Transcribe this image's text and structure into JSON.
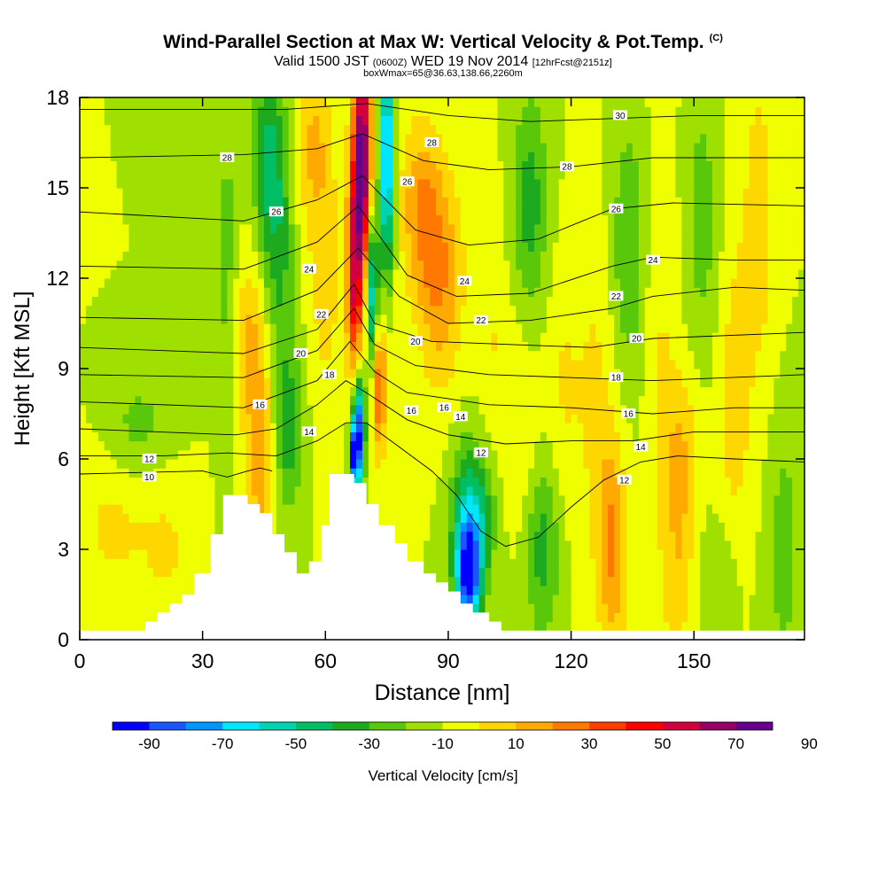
{
  "figure": {
    "title_main": "Wind-Parallel Section at Max W: Vertical Velocity & Pot.Temp.",
    "title_mark": "(C)",
    "subtitle_pre": "Valid 1500 JST",
    "subtitle_z": "(0600Z)",
    "subtitle_post": "WED 19 Nov 2014",
    "subtitle_fcst": "[12hrFcst@2151z]",
    "subtitle2": "boxWmax=65@36.63,138.66,2260m"
  },
  "chart_data": {
    "type": "heatmap",
    "title": "Wind-Parallel Section at Max W: Vertical Velocity & Pot.Temp.",
    "xlabel": "Distance [nm]",
    "ylabel": "Height [Kft MSL]",
    "xlim": [
      0,
      177
    ],
    "ylim": [
      0,
      18
    ],
    "xticks": [
      0,
      30,
      60,
      90,
      120,
      150
    ],
    "yticks": [
      0,
      3,
      6,
      9,
      12,
      15,
      18
    ],
    "colorbar": {
      "label": "Vertical Velocity [cm/s]",
      "tick_labels": [
        -90,
        -70,
        -50,
        -30,
        -10,
        10,
        30,
        50,
        70,
        90
      ],
      "colors": [
        "#0000ff",
        "#1a55ff",
        "#0096ff",
        "#00e6ff",
        "#00d2b4",
        "#00be64",
        "#1eaa1e",
        "#5ac80a",
        "#a0e000",
        "#f0ff00",
        "#ffd700",
        "#ffaa00",
        "#ff7800",
        "#ff3c00",
        "#ff0000",
        "#d2003c",
        "#960064",
        "#64008c"
      ]
    },
    "terrain": [
      [
        0,
        0.3
      ],
      [
        16,
        0.3
      ],
      [
        16,
        0.6
      ],
      [
        19,
        0.6
      ],
      [
        19,
        0.9
      ],
      [
        22,
        0.9
      ],
      [
        22,
        1.2
      ],
      [
        25,
        1.2
      ],
      [
        25,
        1.5
      ],
      [
        28,
        1.5
      ],
      [
        28,
        2.2
      ],
      [
        32,
        2.2
      ],
      [
        32,
        3.5
      ],
      [
        35,
        3.5
      ],
      [
        35,
        4.8
      ],
      [
        41,
        4.8
      ],
      [
        41,
        4.5
      ],
      [
        44,
        4.5
      ],
      [
        44,
        4.2
      ],
      [
        47,
        4.2
      ],
      [
        47,
        3.5
      ],
      [
        50,
        3.5
      ],
      [
        50,
        2.9
      ],
      [
        53,
        2.9
      ],
      [
        53,
        2.2
      ],
      [
        56,
        2.2
      ],
      [
        56,
        2.6
      ],
      [
        59,
        2.6
      ],
      [
        59,
        3.8
      ],
      [
        61,
        3.8
      ],
      [
        61,
        5.5
      ],
      [
        67,
        5.5
      ],
      [
        67,
        5.2
      ],
      [
        70,
        5.2
      ],
      [
        70,
        4.5
      ],
      [
        73,
        4.5
      ],
      [
        73,
        3.8
      ],
      [
        77,
        3.8
      ],
      [
        77,
        3.2
      ],
      [
        80,
        3.2
      ],
      [
        80,
        2.6
      ],
      [
        84,
        2.6
      ],
      [
        84,
        2.2
      ],
      [
        87,
        2.2
      ],
      [
        87,
        1.9
      ],
      [
        90,
        1.9
      ],
      [
        90,
        1.6
      ],
      [
        93,
        1.6
      ],
      [
        93,
        1.2
      ],
      [
        96,
        1.2
      ],
      [
        96,
        0.9
      ],
      [
        100,
        0.9
      ],
      [
        100,
        0.6
      ],
      [
        103,
        0.6
      ],
      [
        103,
        0.3
      ],
      [
        177,
        0.3
      ]
    ],
    "w_field": [
      {
        "x": 69,
        "y": 16,
        "sx": 1.6,
        "sy": 2.8,
        "w": 85
      },
      {
        "x": 67,
        "y": 12,
        "sx": 1.3,
        "sy": 2.6,
        "w": 55
      },
      {
        "x": 73,
        "y": 8.5,
        "sx": 1.4,
        "sy": 1.6,
        "w": 45
      },
      {
        "x": 88,
        "y": 12,
        "sx": 4,
        "sy": 2.5,
        "w": 30
      },
      {
        "x": 83,
        "y": 14.5,
        "sx": 3.5,
        "sy": 2,
        "w": 25
      },
      {
        "x": 75,
        "y": 16,
        "sx": 1.2,
        "sy": 2.6,
        "w": -70
      },
      {
        "x": 71.5,
        "y": 11.5,
        "sx": 1,
        "sy": 2,
        "w": -55
      },
      {
        "x": 68,
        "y": 7,
        "sx": 1.1,
        "sy": 1.3,
        "w": -80
      },
      {
        "x": 67,
        "y": 6,
        "sx": 0.8,
        "sy": 0.8,
        "w": -60
      },
      {
        "x": 95,
        "y": 2,
        "sx": 2,
        "sy": 1.2,
        "w": -65
      },
      {
        "x": 94,
        "y": 3.5,
        "sx": 2.5,
        "sy": 2,
        "w": -40
      },
      {
        "x": 98,
        "y": 4,
        "sx": 2.5,
        "sy": 1.5,
        "w": -30
      },
      {
        "x": 44,
        "y": 6,
        "sx": 2.5,
        "sy": 2.6,
        "w": 25
      },
      {
        "x": 41,
        "y": 10,
        "sx": 3,
        "sy": 2,
        "w": 20
      },
      {
        "x": 60,
        "y": 12,
        "sx": 3,
        "sy": 3,
        "w": 15
      },
      {
        "x": 57,
        "y": 16.5,
        "sx": 3,
        "sy": 2,
        "w": 20
      },
      {
        "x": 46,
        "y": 16,
        "sx": 2.5,
        "sy": 2.5,
        "w": -30
      },
      {
        "x": 49,
        "y": 13,
        "sx": 2.5,
        "sy": 3,
        "w": -20
      },
      {
        "x": 51,
        "y": 7,
        "sx": 2.5,
        "sy": 2,
        "w": -25
      },
      {
        "x": 36,
        "y": 12,
        "sx": 2,
        "sy": 4,
        "w": -15
      },
      {
        "x": 26,
        "y": 15,
        "sx": 3,
        "sy": 3,
        "w": -8
      },
      {
        "x": 8,
        "y": 4,
        "sx": 7,
        "sy": 2,
        "w": 12
      },
      {
        "x": 22,
        "y": 3,
        "sx": 5,
        "sy": 2,
        "w": 10
      },
      {
        "x": 14,
        "y": 7,
        "sx": 6,
        "sy": 1.3,
        "w": -15
      },
      {
        "x": 110,
        "y": 14.5,
        "sx": 3,
        "sy": 2.5,
        "w": -25
      },
      {
        "x": 113,
        "y": 3,
        "sx": 3,
        "sy": 2,
        "w": -25
      },
      {
        "x": 108,
        "y": 7,
        "sx": 2.5,
        "sy": 2.5,
        "w": 10
      },
      {
        "x": 130,
        "y": 3,
        "sx": 2.5,
        "sy": 2.5,
        "w": 30
      },
      {
        "x": 126,
        "y": 8,
        "sx": 3.5,
        "sy": 4,
        "w": 12
      },
      {
        "x": 134,
        "y": 13,
        "sx": 3,
        "sy": 3,
        "w": -20
      },
      {
        "x": 142,
        "y": 10,
        "sx": 3,
        "sy": 5,
        "w": 10
      },
      {
        "x": 147,
        "y": 6,
        "sx": 3,
        "sy": 2,
        "w": 20
      },
      {
        "x": 146,
        "y": 2,
        "sx": 3,
        "sy": 2,
        "w": 15
      },
      {
        "x": 152,
        "y": 14,
        "sx": 3,
        "sy": 3,
        "w": -15
      },
      {
        "x": 160,
        "y": 8,
        "sx": 3,
        "sy": 4,
        "w": 15
      },
      {
        "x": 166,
        "y": 14,
        "sx": 3,
        "sy": 4,
        "w": 15
      },
      {
        "x": 172,
        "y": 3,
        "sx": 3,
        "sy": 3,
        "w": -15
      },
      {
        "x": 156,
        "y": 2,
        "sx": 4,
        "sy": 1.5,
        "w": -10
      },
      {
        "x": 101,
        "y": 10,
        "sx": 2.5,
        "sy": 3,
        "w": 10
      },
      {
        "x": 118,
        "y": 8.5,
        "sx": 3,
        "sy": 3,
        "w": 10
      }
    ],
    "theta_contours": [
      {
        "level": 10,
        "points": [
          [
            0,
            5.5
          ],
          [
            30,
            5.6
          ],
          [
            36,
            5.4
          ],
          [
            41,
            5.6
          ],
          [
            44,
            5.7
          ],
          [
            47,
            5.6
          ]
        ]
      },
      {
        "level": 12,
        "points": [
          [
            0,
            6.1
          ],
          [
            20,
            6.1
          ],
          [
            36,
            6.2
          ],
          [
            48,
            6.1
          ],
          [
            58,
            6.6
          ],
          [
            65,
            7.2
          ],
          [
            70,
            7.2
          ],
          [
            78,
            6.4
          ],
          [
            86,
            5.6
          ],
          [
            92,
            4.8
          ],
          [
            98,
            3.6
          ],
          [
            104,
            3.1
          ],
          [
            112,
            3.4
          ],
          [
            120,
            4.4
          ],
          [
            128,
            5.3
          ],
          [
            137,
            5.9
          ],
          [
            146,
            6.1
          ],
          [
            160,
            6.0
          ],
          [
            177,
            5.9
          ]
        ]
      },
      {
        "level": 14,
        "points": [
          [
            0,
            7.0
          ],
          [
            38,
            6.8
          ],
          [
            48,
            7.0
          ],
          [
            58,
            7.8
          ],
          [
            65,
            8.6
          ],
          [
            70,
            8.2
          ],
          [
            80,
            7.3
          ],
          [
            90,
            6.8
          ],
          [
            104,
            6.5
          ],
          [
            120,
            6.6
          ],
          [
            135,
            6.6
          ],
          [
            150,
            6.9
          ],
          [
            177,
            6.9
          ]
        ]
      },
      {
        "level": 16,
        "points": [
          [
            0,
            7.9
          ],
          [
            40,
            7.7
          ],
          [
            58,
            8.6
          ],
          [
            66,
            9.9
          ],
          [
            72,
            8.9
          ],
          [
            80,
            8.2
          ],
          [
            100,
            7.8
          ],
          [
            120,
            7.7
          ],
          [
            140,
            7.5
          ],
          [
            160,
            7.7
          ],
          [
            177,
            7.7
          ]
        ]
      },
      {
        "level": 18,
        "points": [
          [
            0,
            8.8
          ],
          [
            40,
            8.7
          ],
          [
            58,
            9.6
          ],
          [
            67,
            11.0
          ],
          [
            72,
            9.8
          ],
          [
            82,
            9.1
          ],
          [
            100,
            8.8
          ],
          [
            120,
            8.7
          ],
          [
            140,
            8.6
          ],
          [
            177,
            8.8
          ]
        ]
      },
      {
        "level": 20,
        "points": [
          [
            0,
            9.7
          ],
          [
            40,
            9.5
          ],
          [
            58,
            10.3
          ],
          [
            67,
            11.8
          ],
          [
            72,
            10.5
          ],
          [
            86,
            9.9
          ],
          [
            105,
            9.8
          ],
          [
            125,
            9.7
          ],
          [
            140,
            10.0
          ],
          [
            177,
            10.2
          ]
        ]
      },
      {
        "level": 22,
        "points": [
          [
            0,
            10.7
          ],
          [
            40,
            10.6
          ],
          [
            58,
            11.6
          ],
          [
            68,
            13.0
          ],
          [
            78,
            11.4
          ],
          [
            90,
            10.5
          ],
          [
            110,
            10.6
          ],
          [
            130,
            11.0
          ],
          [
            140,
            11.4
          ],
          [
            160,
            11.7
          ],
          [
            177,
            11.6
          ]
        ]
      },
      {
        "level": 24,
        "points": [
          [
            0,
            12.4
          ],
          [
            40,
            12.3
          ],
          [
            58,
            13.2
          ],
          [
            68,
            14.4
          ],
          [
            80,
            12.1
          ],
          [
            92,
            11.4
          ],
          [
            110,
            11.5
          ],
          [
            130,
            12.4
          ],
          [
            140,
            12.7
          ],
          [
            160,
            12.6
          ],
          [
            177,
            12.6
          ]
        ]
      },
      {
        "level": 26,
        "points": [
          [
            0,
            14.2
          ],
          [
            40,
            13.9
          ],
          [
            58,
            14.6
          ],
          [
            69,
            15.4
          ],
          [
            82,
            13.6
          ],
          [
            95,
            13.1
          ],
          [
            112,
            13.3
          ],
          [
            130,
            14.3
          ],
          [
            145,
            14.5
          ],
          [
            177,
            14.4
          ]
        ]
      },
      {
        "level": 28,
        "points": [
          [
            0,
            16.0
          ],
          [
            40,
            16.1
          ],
          [
            58,
            16.3
          ],
          [
            69,
            16.8
          ],
          [
            84,
            15.9
          ],
          [
            100,
            15.6
          ],
          [
            120,
            15.7
          ],
          [
            140,
            16.0
          ],
          [
            177,
            16.0
          ]
        ]
      },
      {
        "level": 30,
        "points": [
          [
            0,
            17.6
          ],
          [
            50,
            17.6
          ],
          [
            70,
            17.8
          ],
          [
            90,
            17.4
          ],
          [
            110,
            17.2
          ],
          [
            130,
            17.3
          ],
          [
            150,
            17.4
          ],
          [
            177,
            17.4
          ]
        ]
      }
    ],
    "contour_labels": [
      {
        "text": "10",
        "x": 17,
        "y": 5.4
      },
      {
        "text": "12",
        "x": 17,
        "y": 6.0
      },
      {
        "text": "14",
        "x": 56,
        "y": 6.9
      },
      {
        "text": "16",
        "x": 44,
        "y": 7.8
      },
      {
        "text": "18",
        "x": 61,
        "y": 8.8
      },
      {
        "text": "20",
        "x": 54,
        "y": 9.5
      },
      {
        "text": "22",
        "x": 59,
        "y": 10.8
      },
      {
        "text": "24",
        "x": 56,
        "y": 12.3
      },
      {
        "text": "26",
        "x": 48,
        "y": 14.2
      },
      {
        "text": "28",
        "x": 36,
        "y": 16.0
      },
      {
        "text": "16",
        "x": 81,
        "y": 7.6
      },
      {
        "text": "16",
        "x": 89,
        "y": 7.7
      },
      {
        "text": "14",
        "x": 93,
        "y": 7.4
      },
      {
        "text": "12",
        "x": 98,
        "y": 6.2
      },
      {
        "text": "20",
        "x": 82,
        "y": 9.9
      },
      {
        "text": "22",
        "x": 98,
        "y": 10.6
      },
      {
        "text": "24",
        "x": 94,
        "y": 11.9
      },
      {
        "text": "26",
        "x": 80,
        "y": 15.2
      },
      {
        "text": "28",
        "x": 86,
        "y": 16.5
      },
      {
        "text": "12",
        "x": 133,
        "y": 5.3
      },
      {
        "text": "14",
        "x": 137,
        "y": 6.4
      },
      {
        "text": "16",
        "x": 134,
        "y": 7.5
      },
      {
        "text": "18",
        "x": 131,
        "y": 8.7
      },
      {
        "text": "20",
        "x": 136,
        "y": 10.0
      },
      {
        "text": "22",
        "x": 131,
        "y": 11.4
      },
      {
        "text": "24",
        "x": 140,
        "y": 12.6
      },
      {
        "text": "26",
        "x": 131,
        "y": 14.3
      },
      {
        "text": "28",
        "x": 119,
        "y": 15.7
      },
      {
        "text": "30",
        "x": 132,
        "y": 17.4
      }
    ],
    "label_positions_px": null
  }
}
